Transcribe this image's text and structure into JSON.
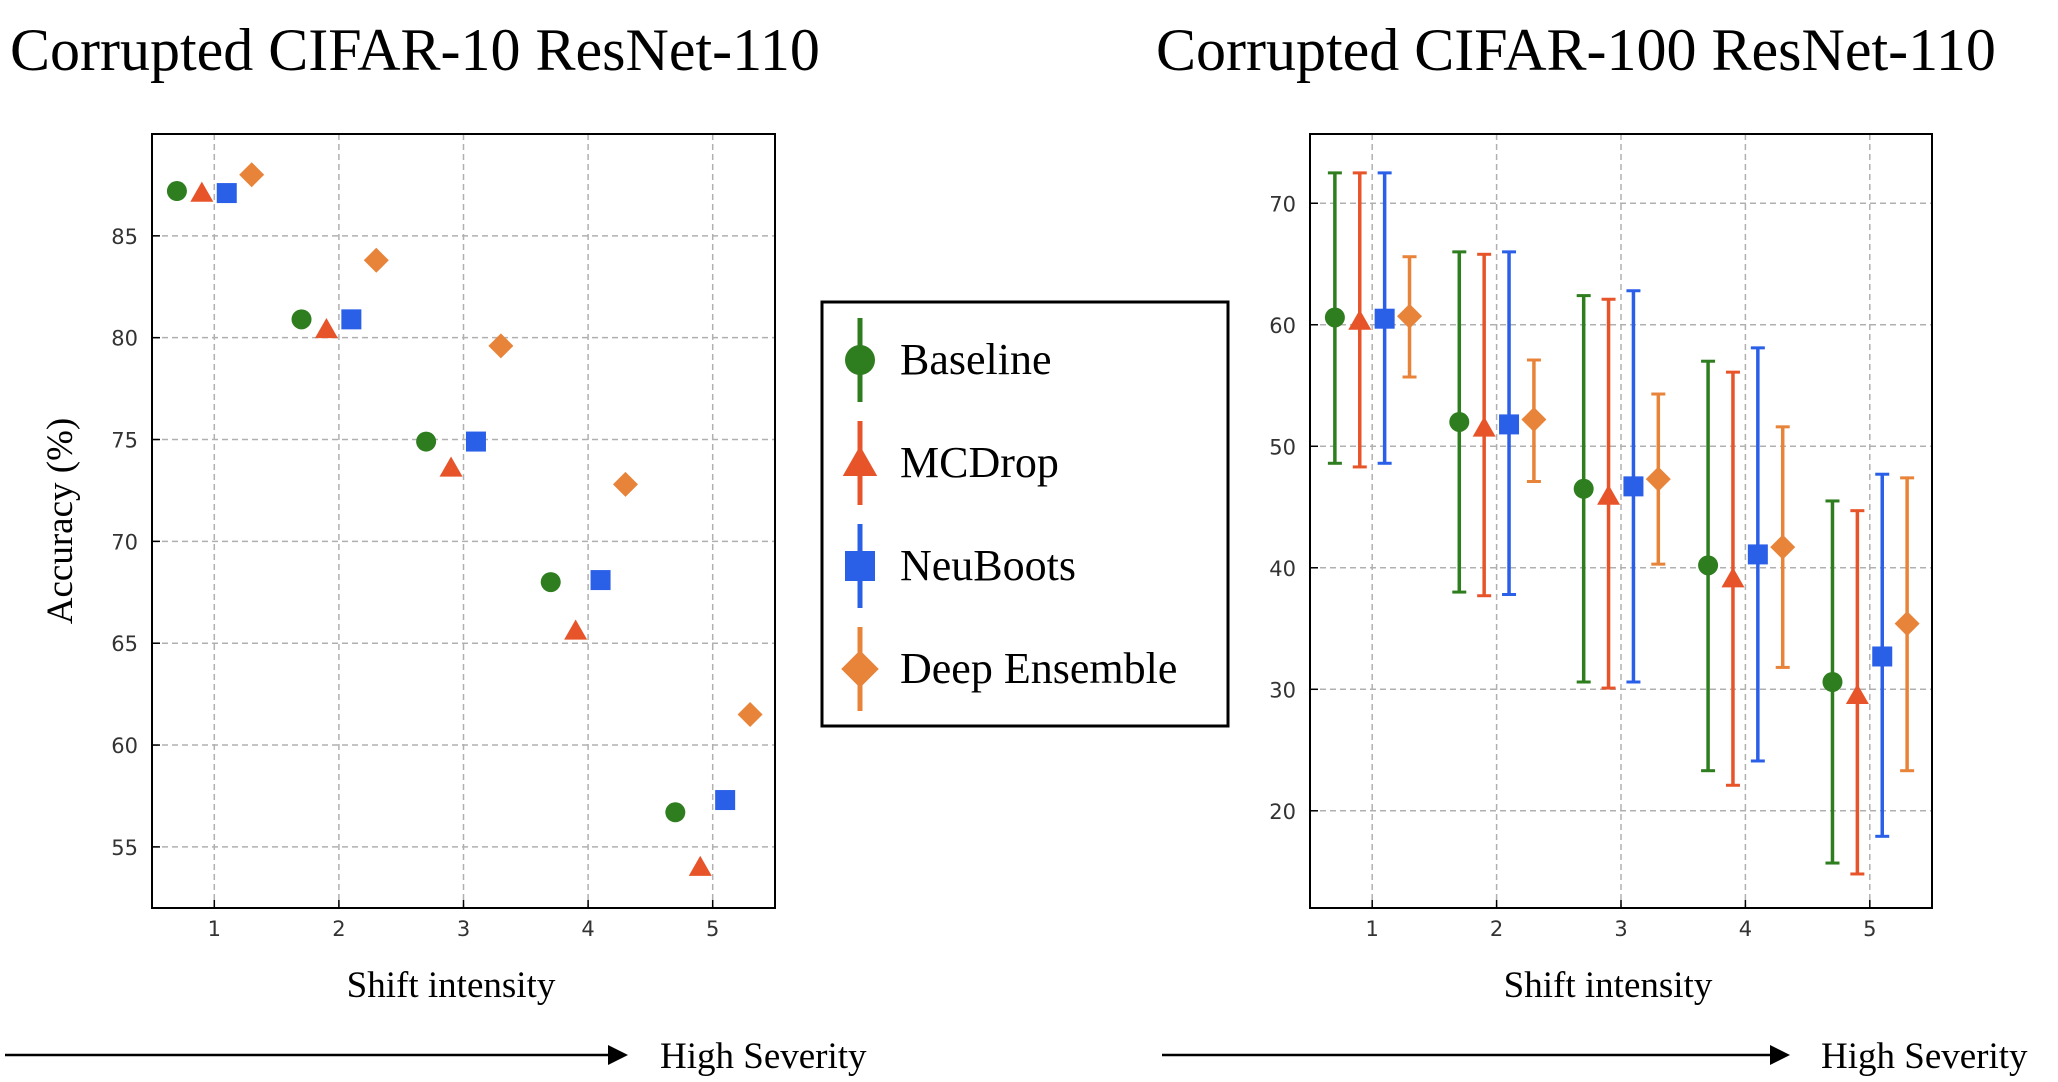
{
  "colors": {
    "Baseline": "#2e7d1e",
    "MCDrop": "#e8542a",
    "NeuBoots": "#2a5fe8",
    "Deep Ensemble": "#e8843a"
  },
  "legend": {
    "entries": [
      {
        "name": "Baseline",
        "marker": "circle"
      },
      {
        "name": "MCDrop",
        "marker": "triangle"
      },
      {
        "name": "NeuBoots",
        "marker": "square"
      },
      {
        "name": "Deep Ensemble",
        "marker": "diamond"
      }
    ]
  },
  "severity_label": "High Severity",
  "chart_data": [
    {
      "type": "scatter",
      "title": "Corrupted CIFAR-10 ResNet-110",
      "xlabel": "Shift intensity",
      "ylabel": "Accuracy (%)",
      "xlim": [
        0.5,
        5.5
      ],
      "ylim": [
        52,
        90
      ],
      "xticks": [
        1,
        2,
        3,
        4,
        5
      ],
      "yticks": [
        55,
        60,
        65,
        70,
        75,
        80,
        85
      ],
      "grid": true,
      "x": [
        1,
        2,
        3,
        4,
        5
      ],
      "series": [
        {
          "name": "Baseline",
          "offset": -0.3,
          "values": [
            87.2,
            80.9,
            74.9,
            68.0,
            56.7
          ]
        },
        {
          "name": "MCDrop",
          "offset": -0.1,
          "values": [
            87.1,
            80.4,
            73.6,
            65.6,
            54.0
          ]
        },
        {
          "name": "NeuBoots",
          "offset": 0.1,
          "values": [
            87.1,
            80.9,
            74.9,
            68.1,
            57.3
          ]
        },
        {
          "name": "Deep Ensemble",
          "offset": 0.3,
          "values": [
            88.0,
            83.8,
            79.6,
            72.8,
            61.5
          ]
        }
      ]
    },
    {
      "type": "scatter",
      "title": "Corrupted CIFAR-100 ResNet-110",
      "xlabel": "Shift intensity",
      "ylabel": "",
      "xlim": [
        0.5,
        5.5
      ],
      "ylim": [
        12,
        75.7
      ],
      "xticks": [
        1,
        2,
        3,
        4,
        5
      ],
      "yticks": [
        20,
        30,
        40,
        50,
        60,
        70
      ],
      "grid": true,
      "x": [
        1,
        2,
        3,
        4,
        5
      ],
      "series": [
        {
          "name": "Baseline",
          "offset": -0.3,
          "values": [
            60.6,
            52.0,
            46.5,
            40.2,
            30.6
          ],
          "low": [
            48.6,
            38.0,
            30.6,
            23.3,
            15.7
          ],
          "high": [
            72.5,
            66.0,
            62.4,
            57.0,
            45.5
          ]
        },
        {
          "name": "MCDrop",
          "offset": -0.1,
          "values": [
            60.3,
            51.5,
            45.9,
            39.1,
            29.5
          ],
          "low": [
            48.3,
            37.7,
            30.1,
            22.1,
            14.8
          ],
          "high": [
            72.5,
            65.8,
            62.1,
            56.1,
            44.7
          ]
        },
        {
          "name": "NeuBoots",
          "offset": 0.1,
          "values": [
            60.5,
            51.8,
            46.7,
            41.1,
            32.7
          ],
          "low": [
            48.6,
            37.8,
            30.6,
            24.1,
            17.9
          ],
          "high": [
            72.5,
            66.0,
            62.8,
            58.1,
            47.7
          ]
        },
        {
          "name": "Deep Ensemble",
          "offset": 0.3,
          "values": [
            60.7,
            52.2,
            47.3,
            41.7,
            35.4
          ],
          "low": [
            55.7,
            47.1,
            40.3,
            31.8,
            23.3
          ],
          "high": [
            65.6,
            57.1,
            54.3,
            51.6,
            47.4
          ]
        }
      ]
    }
  ]
}
